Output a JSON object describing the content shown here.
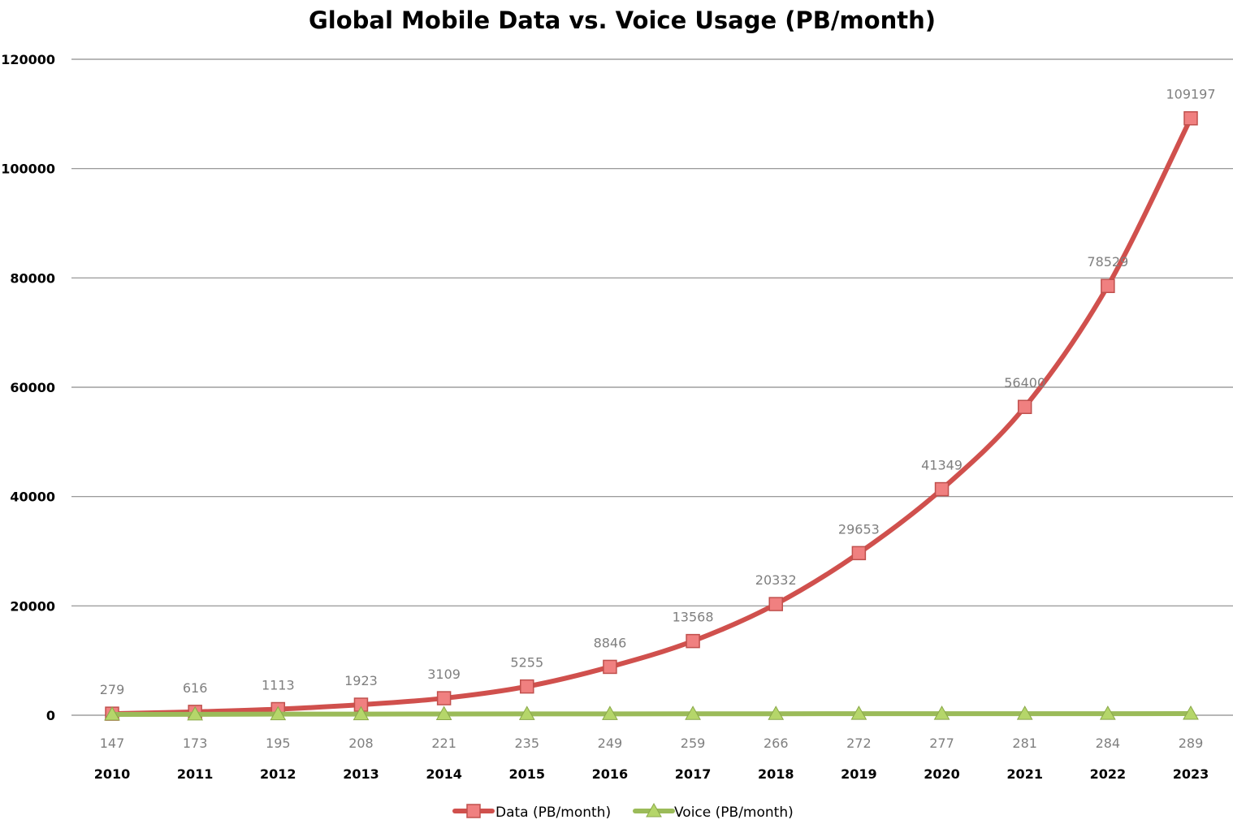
{
  "chart_data": {
    "type": "line",
    "title": "Global Mobile Data vs. Voice Usage (PB/month)",
    "xlabel": "",
    "ylabel": "",
    "categories": [
      "2010",
      "2011",
      "2012",
      "2013",
      "2014",
      "2015",
      "2016",
      "2017",
      "2018",
      "2019",
      "2020",
      "2021",
      "2022",
      "2023"
    ],
    "ylim": [
      0,
      120000
    ],
    "yticks": [
      "0",
      "20000",
      "40000",
      "60000",
      "80000",
      "100000",
      "120000"
    ],
    "grid": true,
    "legend_position": "bottom",
    "series": [
      {
        "name": "Data (PB/month)",
        "color": "#d0504d",
        "marker": "square",
        "values": [
          279,
          616,
          1113,
          1923,
          3109,
          5255,
          8846,
          13568,
          20332,
          29653,
          41349,
          56400,
          78529,
          109197
        ],
        "labels": [
          "279",
          "616",
          "1113",
          "1923",
          "3109",
          "5255",
          "8846",
          "13568",
          "20332",
          "29653",
          "41349",
          "56400",
          "78529",
          "109197"
        ]
      },
      {
        "name": "Voice (PB/month)",
        "color": "#9bbb59",
        "marker": "triangle",
        "values": [
          147,
          173,
          195,
          208,
          221,
          235,
          249,
          259,
          266,
          272,
          277,
          281,
          284,
          289
        ],
        "labels": [
          "147",
          "173",
          "195",
          "208",
          "221",
          "235",
          "249",
          "259",
          "266",
          "272",
          "277",
          "281",
          "284",
          "289"
        ]
      }
    ]
  }
}
